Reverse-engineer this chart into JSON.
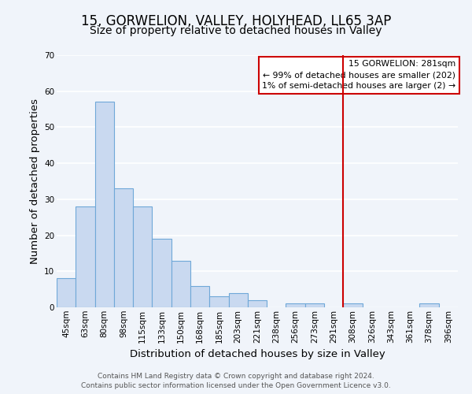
{
  "title": "15, GORWELION, VALLEY, HOLYHEAD, LL65 3AP",
  "subtitle": "Size of property relative to detached houses in Valley",
  "xlabel": "Distribution of detached houses by size in Valley",
  "ylabel": "Number of detached properties",
  "bar_labels": [
    "45sqm",
    "63sqm",
    "80sqm",
    "98sqm",
    "115sqm",
    "133sqm",
    "150sqm",
    "168sqm",
    "185sqm",
    "203sqm",
    "221sqm",
    "238sqm",
    "256sqm",
    "273sqm",
    "291sqm",
    "308sqm",
    "326sqm",
    "343sqm",
    "361sqm",
    "378sqm",
    "396sqm"
  ],
  "bar_heights": [
    8,
    28,
    57,
    33,
    28,
    19,
    13,
    6,
    3,
    4,
    2,
    0,
    1,
    1,
    0,
    1,
    0,
    0,
    0,
    1,
    0
  ],
  "bar_color": "#c9d9f0",
  "bar_edge_color": "#6fa8d8",
  "vline_x_index": 14,
  "vline_color": "#cc0000",
  "ylim": [
    0,
    70
  ],
  "yticks": [
    0,
    10,
    20,
    30,
    40,
    50,
    60,
    70
  ],
  "annotation_title": "15 GORWELION: 281sqm",
  "annotation_line1": "← 99% of detached houses are smaller (202)",
  "annotation_line2": "1% of semi-detached houses are larger (2) →",
  "annotation_box_edgecolor": "#cc0000",
  "annotation_bg": "#ffffff",
  "footer1": "Contains HM Land Registry data © Crown copyright and database right 2024.",
  "footer2": "Contains public sector information licensed under the Open Government Licence v3.0.",
  "bg_color": "#f0f4fa",
  "grid_color": "#ffffff",
  "title_fontsize": 12,
  "subtitle_fontsize": 10,
  "axis_label_fontsize": 9.5,
  "tick_fontsize": 7.5,
  "footer_fontsize": 6.5
}
